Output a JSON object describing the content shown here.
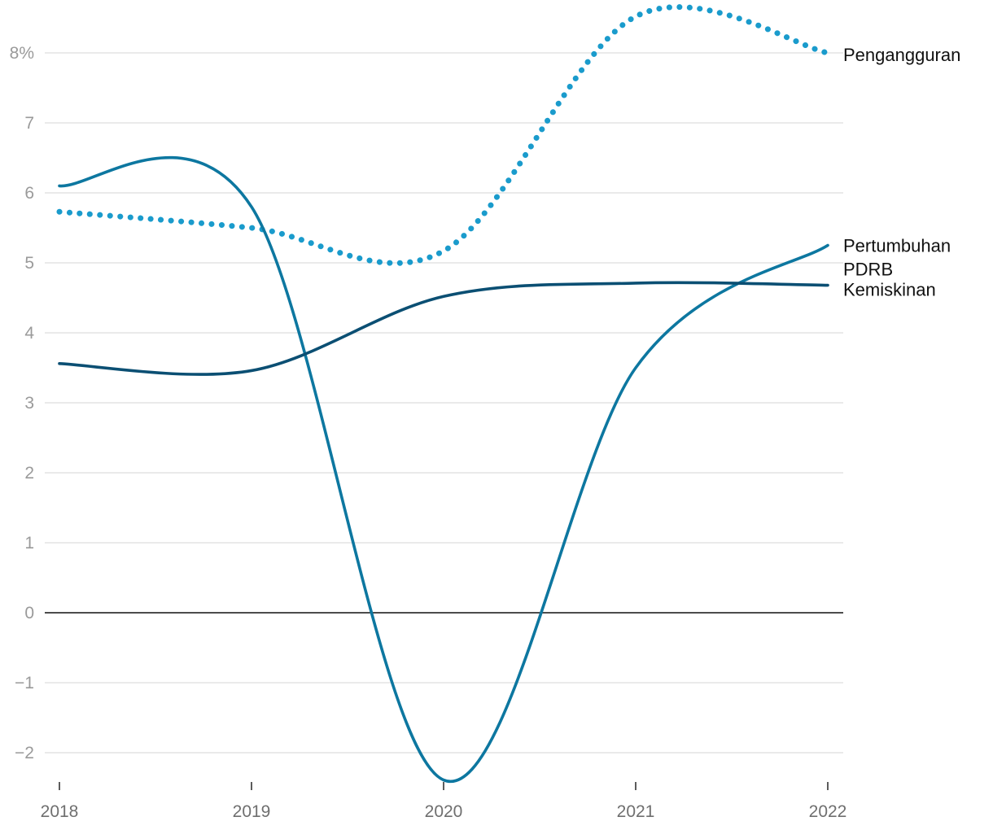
{
  "chart_data": {
    "type": "line",
    "title": "",
    "xlabel": "",
    "ylabel": "",
    "x": [
      2018,
      2019,
      2020,
      2021,
      2022
    ],
    "x_tick_labels": [
      "2018",
      "2019",
      "2020",
      "2021",
      "2022"
    ],
    "ylim": [
      -2.35,
      8.6
    ],
    "y_ticks": [
      -2,
      -1,
      0,
      1,
      2,
      3,
      4,
      5,
      6,
      7,
      8
    ],
    "y_tick_labels": [
      "−2",
      "−1",
      "0",
      "1",
      "2",
      "3",
      "4",
      "5",
      "6",
      "7",
      "8%"
    ],
    "grid": true,
    "zero_line": true,
    "legend": "direct labels at line ends (right)",
    "series": [
      {
        "name": "Pengangguran",
        "label": "Pengangguran",
        "style": "dotted",
        "color": "#1a9bcc",
        "values": [
          5.73,
          5.5,
          5.17,
          8.52,
          8.0
        ]
      },
      {
        "name": "Pertumbuhan PDRB",
        "label_lines": [
          "Pertumbuhan",
          "PDRB"
        ],
        "style": "solid",
        "color": "#0d77a0",
        "values": [
          6.1,
          5.8,
          -2.39,
          3.5,
          5.25
        ]
      },
      {
        "name": "Kemiskinan",
        "label": "Kemiskinan",
        "style": "solid",
        "color": "#0b4f73",
        "values": [
          3.56,
          3.46,
          4.52,
          4.71,
          4.68
        ]
      }
    ]
  }
}
